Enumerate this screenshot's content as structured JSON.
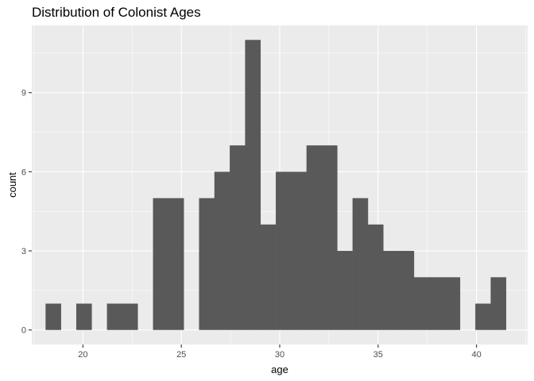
{
  "chart_data": {
    "type": "bar",
    "title": "Distribution of Colonist Ages",
    "xlabel": "age",
    "ylabel": "count",
    "xlim": [
      17.4,
      42.6
    ],
    "ylim": [
      -0.55,
      11.55
    ],
    "x_ticks": [
      20,
      25,
      30,
      35,
      40
    ],
    "y_ticks": [
      0,
      3,
      6,
      9
    ],
    "bin_width": 0.78,
    "bins": [
      {
        "start": 18.1,
        "count": 1
      },
      {
        "start": 18.88,
        "count": 0
      },
      {
        "start": 19.66,
        "count": 1
      },
      {
        "start": 20.44,
        "count": 0
      },
      {
        "start": 21.22,
        "count": 1
      },
      {
        "start": 22.0,
        "count": 1
      },
      {
        "start": 22.78,
        "count": 0
      },
      {
        "start": 23.56,
        "count": 5
      },
      {
        "start": 24.34,
        "count": 5
      },
      {
        "start": 25.12,
        "count": 0
      },
      {
        "start": 25.9,
        "count": 5
      },
      {
        "start": 26.68,
        "count": 6
      },
      {
        "start": 27.46,
        "count": 7
      },
      {
        "start": 28.24,
        "count": 11
      },
      {
        "start": 29.02,
        "count": 4
      },
      {
        "start": 29.8,
        "count": 6
      },
      {
        "start": 30.58,
        "count": 6
      },
      {
        "start": 31.36,
        "count": 7
      },
      {
        "start": 32.14,
        "count": 7
      },
      {
        "start": 32.92,
        "count": 3
      },
      {
        "start": 33.7,
        "count": 5
      },
      {
        "start": 34.48,
        "count": 4
      },
      {
        "start": 35.26,
        "count": 3
      },
      {
        "start": 36.04,
        "count": 3
      },
      {
        "start": 36.82,
        "count": 2
      },
      {
        "start": 37.6,
        "count": 2
      },
      {
        "start": 38.38,
        "count": 2
      },
      {
        "start": 39.16,
        "count": 0
      },
      {
        "start": 39.94,
        "count": 1
      },
      {
        "start": 40.72,
        "count": 2
      }
    ],
    "grid": true,
    "colors": {
      "panel": "#ebebeb",
      "grid_major": "#ffffff",
      "bar": "#595959",
      "tick": "#333333",
      "tick_label": "#4d4d4d"
    }
  }
}
